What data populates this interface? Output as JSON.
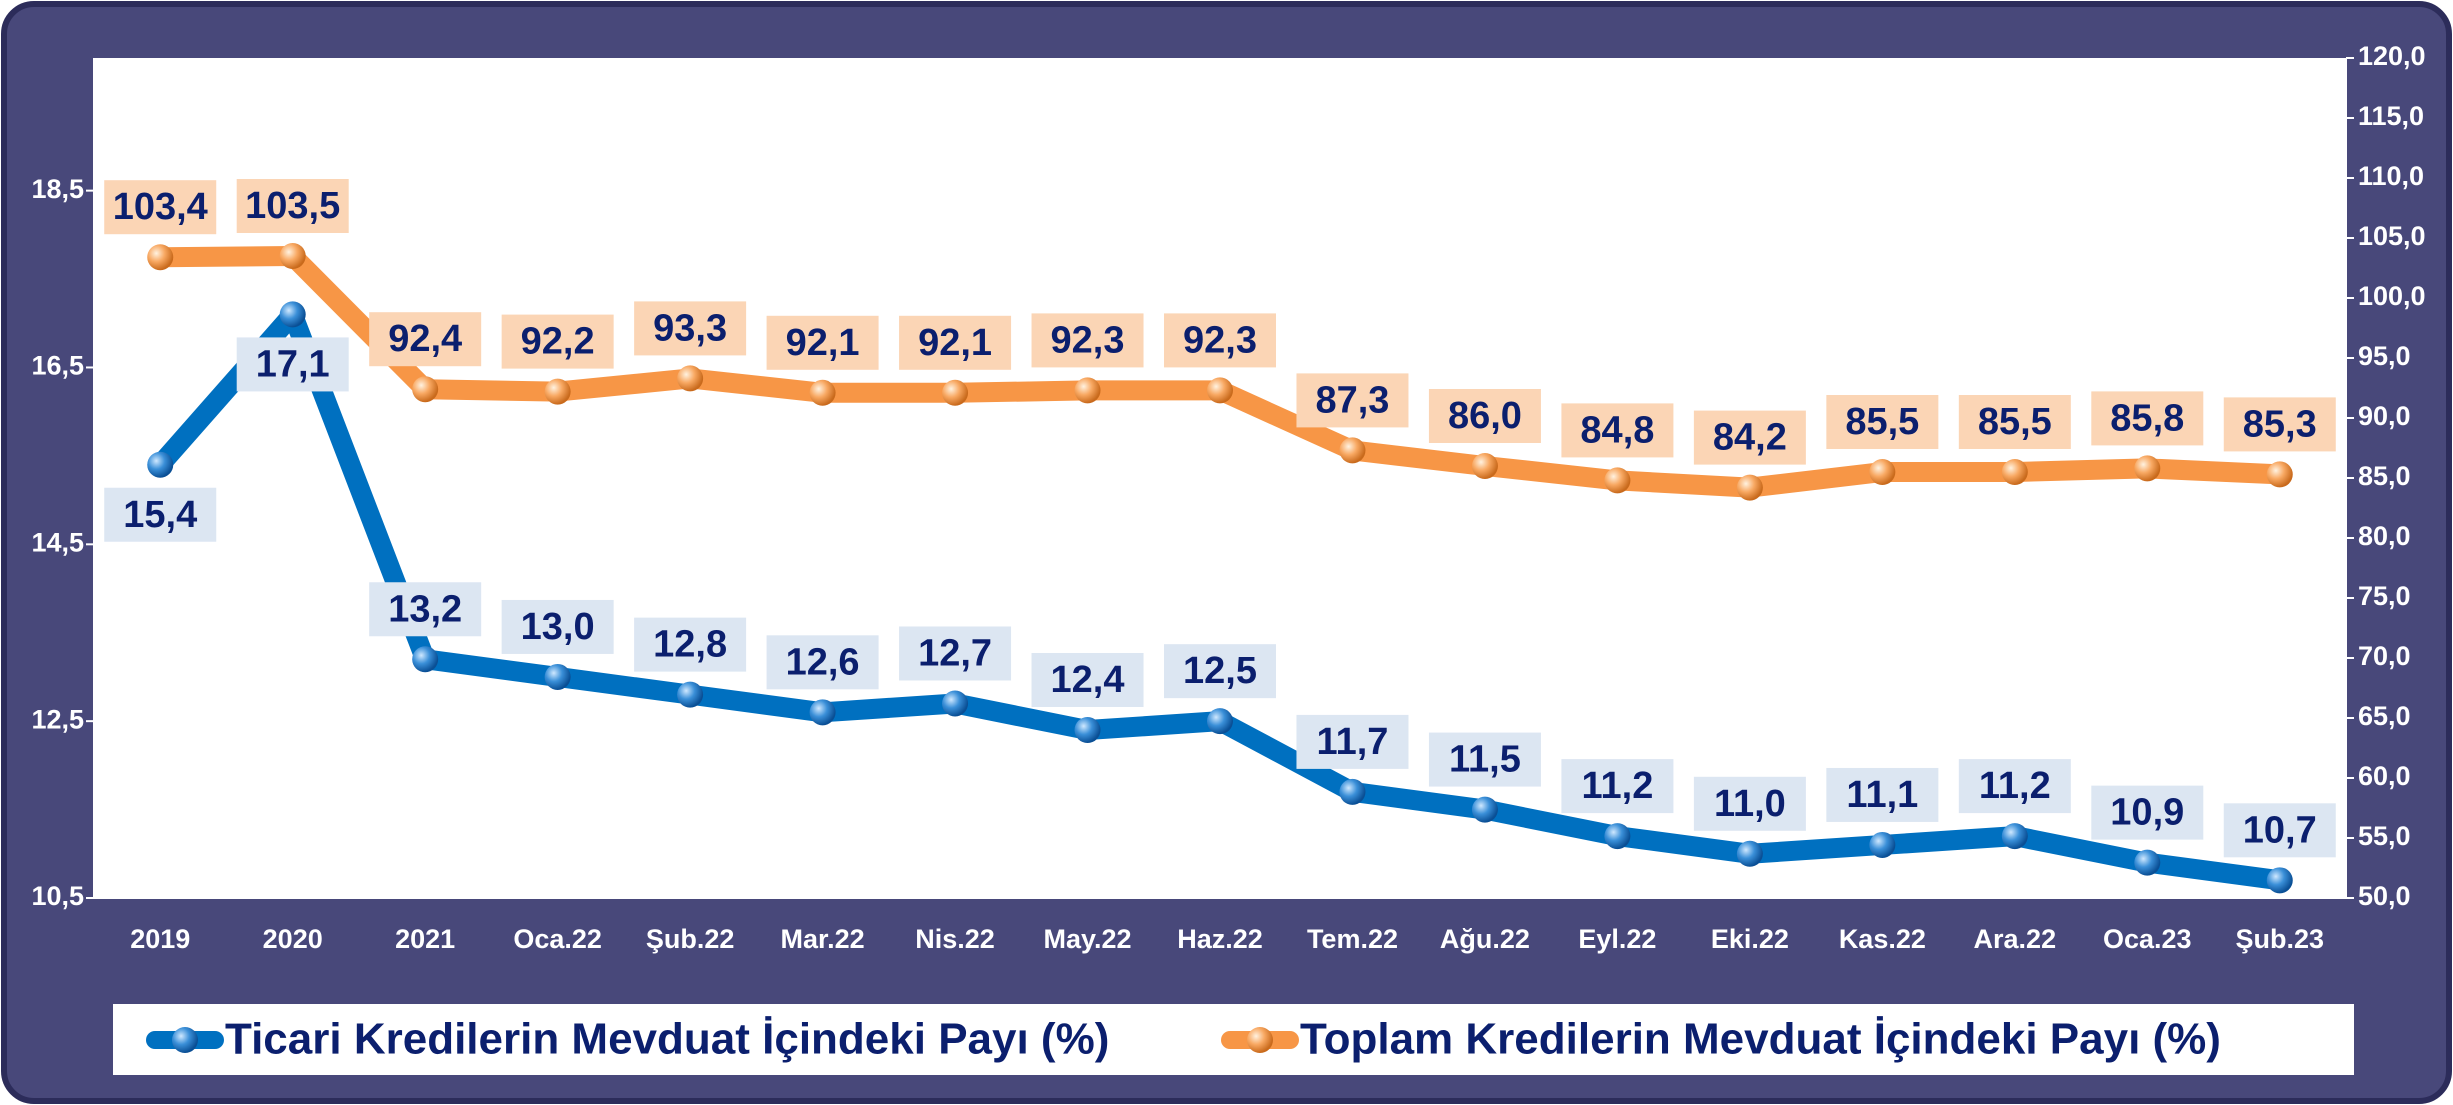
{
  "chart_data": {
    "type": "line",
    "categories": [
      "2019",
      "2020",
      "2021",
      "Oca.22",
      "Şub.22",
      "Mar.22",
      "Nis.22",
      "May.22",
      "Haz.22",
      "Tem.22",
      "Ağu.22",
      "Eyl.22",
      "Eki.22",
      "Kas.22",
      "Ara.22",
      "Oca.23",
      "Şub.23"
    ],
    "series": [
      {
        "name": "Ticari Kredilerin Mevduat İçindeki Payı (%)",
        "color": "#0070c0",
        "axis": "y",
        "values": [
          15.4,
          17.1,
          13.2,
          13.0,
          12.8,
          12.6,
          12.7,
          12.4,
          12.5,
          11.7,
          11.5,
          11.2,
          11.0,
          11.1,
          11.2,
          10.9,
          10.7
        ],
        "value_labels": [
          "15,4",
          "17,1",
          "13,2",
          "13,0",
          "12,8",
          "12,6",
          "12,7",
          "12,4",
          "12,5",
          "11,7",
          "11,5",
          "11,2",
          "11,0",
          "11,1",
          "11,2",
          "10,9",
          "10,7"
        ]
      },
      {
        "name": "Toplam Kredilerin Mevduat İçindeki Payı (%)",
        "color": "#f79646",
        "axis": "y2",
        "values": [
          103.4,
          103.5,
          92.4,
          92.2,
          93.3,
          92.1,
          92.1,
          92.3,
          92.3,
          87.3,
          86.0,
          84.8,
          84.2,
          85.5,
          85.5,
          85.8,
          85.3
        ],
        "value_labels": [
          "103,4",
          "103,5",
          "92,4",
          "92,2",
          "93,3",
          "92,1",
          "92,1",
          "92,3",
          "92,3",
          "87,3",
          "86,0",
          "84,8",
          "84,2",
          "85,5",
          "85,5",
          "85,8",
          "85,3"
        ]
      }
    ],
    "ylim": [
      10.5,
      20.0
    ],
    "yticks": [
      {
        "value": 10.5,
        "label": "10,5"
      },
      {
        "value": 12.5,
        "label": "12,5"
      },
      {
        "value": 14.5,
        "label": "14,5"
      },
      {
        "value": 16.5,
        "label": "16,5"
      },
      {
        "value": 18.5,
        "label": "18,5"
      }
    ],
    "y2lim": [
      50,
      120
    ],
    "y2ticks": [
      {
        "value": 50,
        "label": "50,0"
      },
      {
        "value": 55,
        "label": "55,0"
      },
      {
        "value": 60,
        "label": "60,0"
      },
      {
        "value": 65,
        "label": "65,0"
      },
      {
        "value": 70,
        "label": "70,0"
      },
      {
        "value": 75,
        "label": "75,0"
      },
      {
        "value": 80,
        "label": "80,0"
      },
      {
        "value": 85,
        "label": "85,0"
      },
      {
        "value": 90,
        "label": "90,0"
      },
      {
        "value": 95,
        "label": "95,0"
      },
      {
        "value": 100,
        "label": "100,0"
      },
      {
        "value": 105,
        "label": "105,0"
      },
      {
        "value": 110,
        "label": "110,0"
      },
      {
        "value": 115,
        "label": "115,0"
      },
      {
        "value": 120,
        "label": "120,0"
      }
    ],
    "legend": "bottom"
  }
}
